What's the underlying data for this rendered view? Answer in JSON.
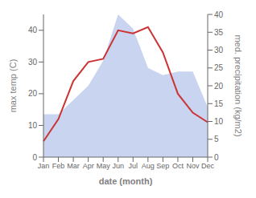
{
  "chart_data": {
    "type": "combo",
    "categories": [
      "Jan",
      "Feb",
      "Mar",
      "Apr",
      "May",
      "Jun",
      "Jul",
      "Aug",
      "Sep",
      "Oct",
      "Nov",
      "Dec"
    ],
    "xlabel": "date (month)",
    "ylabel": "max temp (C)",
    "y2label": "med. precipitation (kg/m2)",
    "series": [
      {
        "type": "area",
        "color": "#c8d4f0",
        "axis": "y2",
        "values": [
          12,
          12,
          16,
          20,
          27,
          40,
          36,
          25,
          23,
          24,
          24,
          14
        ]
      },
      {
        "type": "line",
        "color": "#cc3333",
        "axis": "y",
        "values": [
          5,
          12,
          24,
          30,
          31,
          40,
          39,
          41,
          33,
          20,
          14,
          11
        ]
      }
    ],
    "ylim": [
      0,
      45
    ],
    "yticks": [
      0,
      10,
      20,
      30,
      40
    ],
    "y2lim": [
      0,
      40
    ],
    "y2ticks": [
      0,
      5,
      10,
      15,
      20,
      25,
      30,
      35,
      40
    ],
    "grid": false
  }
}
